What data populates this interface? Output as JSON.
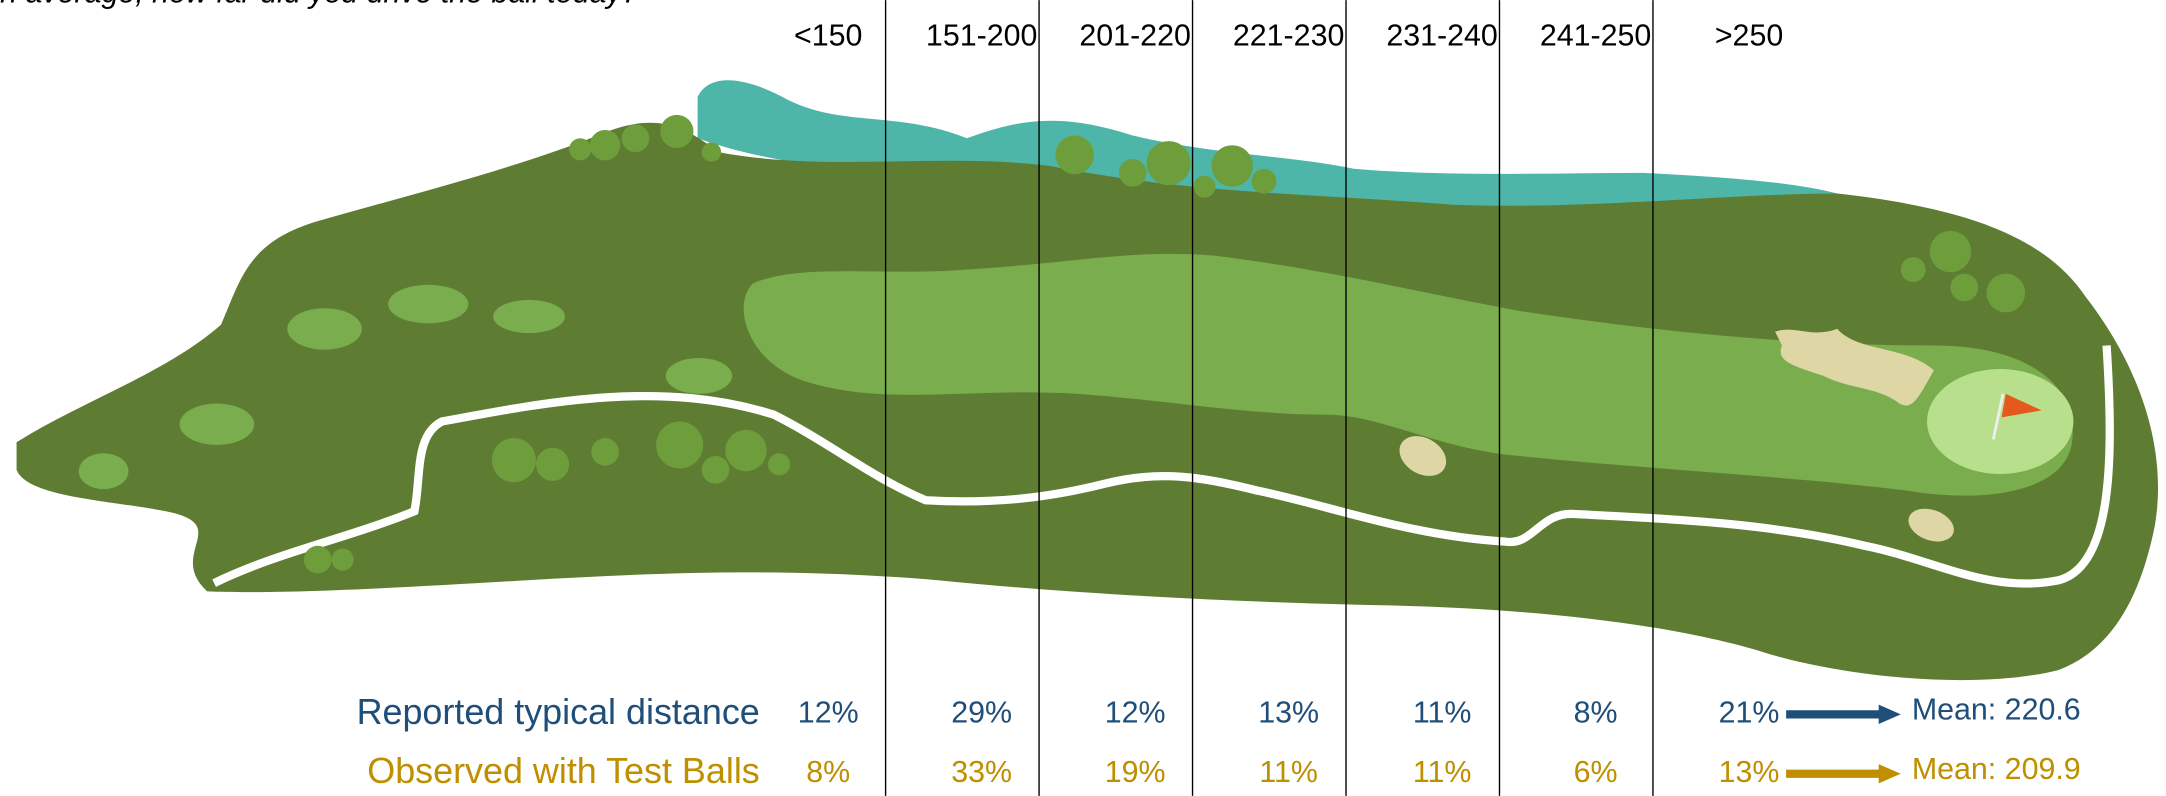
{
  "question": "On average, how far did you drive the ball today?",
  "columns": [
    "<150",
    "151-200",
    "201-220",
    "221-230",
    "231-240",
    "241-250",
    ">250"
  ],
  "rows": [
    {
      "label": "Reported typical distance",
      "color": "#1f4e79",
      "values": [
        "12%",
        "29%",
        "12%",
        "13%",
        "11%",
        "8%",
        "21%"
      ],
      "mean": "Mean: 220.6"
    },
    {
      "label": "Observed with Test Balls",
      "color": "#bf8f00",
      "values": [
        "8%",
        "33%",
        "19%",
        "11%",
        "11%",
        "6%",
        "13%"
      ],
      "mean": "Mean: 209.9"
    }
  ]
}
